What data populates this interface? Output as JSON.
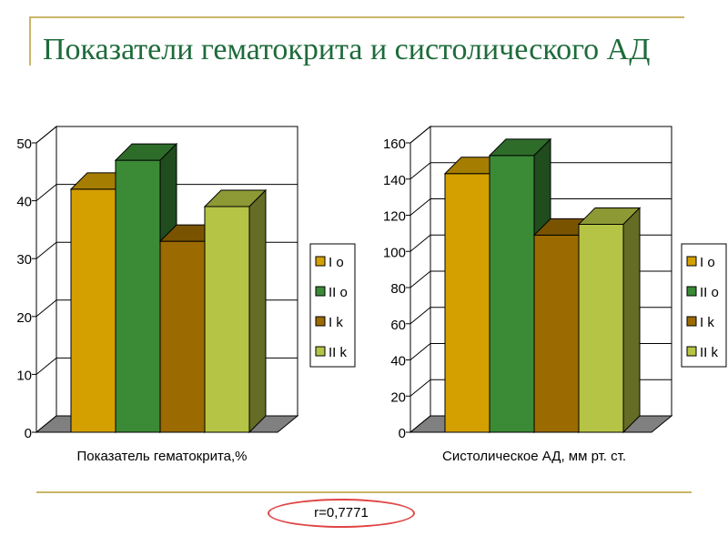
{
  "slide": {
    "title": "Показатели гематокрита и систолического АД",
    "correlation": "r=0,7771"
  },
  "colors": {
    "title": "#1e6b3b",
    "rule": "#c9b76a",
    "I_o": "#d4a000",
    "II_o": "#3b8a36",
    "I_k": "#9b6a00",
    "II_k": "#b5c444",
    "floor": "#808080"
  },
  "chart_data": [
    {
      "type": "bar",
      "style": "3d",
      "categories": [
        "I o",
        "II o",
        "I k",
        "II k"
      ],
      "values": [
        42,
        47,
        33,
        39
      ],
      "xlabel": "Показатель гематокрита,%",
      "ylabel": "",
      "ylim": [
        0,
        50
      ],
      "yticks": [
        "0",
        "10",
        "20",
        "30",
        "40",
        "50"
      ],
      "grid": true,
      "legend": "right",
      "legend_entries": [
        "I o",
        "II o",
        "I k",
        "II k"
      ]
    },
    {
      "type": "bar",
      "style": "3d",
      "categories": [
        "I o",
        "II o",
        "I k",
        "II k"
      ],
      "values": [
        143,
        153,
        109,
        115
      ],
      "xlabel": "Систолическое АД, мм рт. ст.",
      "ylabel": "",
      "ylim": [
        0,
        160
      ],
      "yticks": [
        "0",
        "20",
        "40",
        "60",
        "80",
        "100",
        "120",
        "140",
        "160"
      ],
      "grid": true,
      "legend": "right",
      "legend_entries": [
        "I o",
        "II o",
        "I k",
        "II k"
      ]
    }
  ]
}
